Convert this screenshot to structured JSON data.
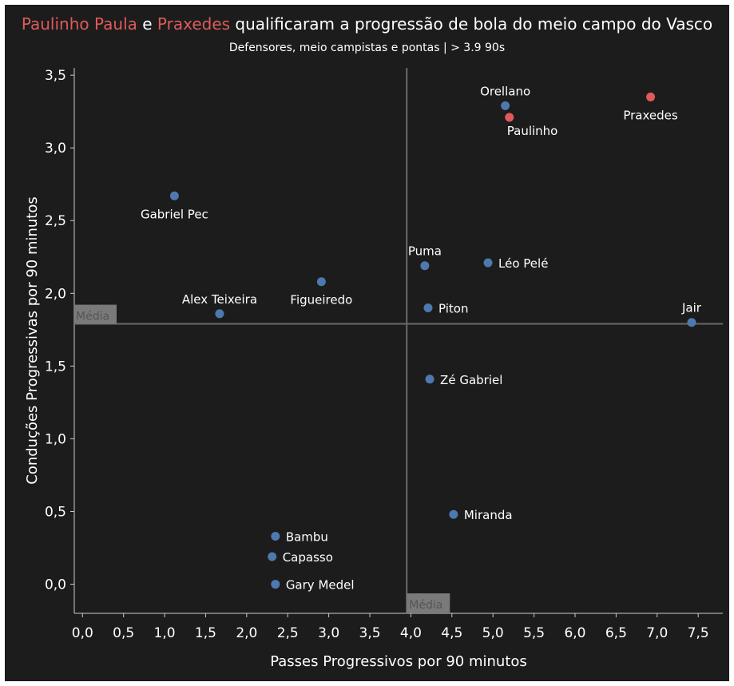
{
  "header": {
    "title_part1": "Paulinho Paula",
    "title_part2": " e ",
    "title_part3": "Praxedes",
    "title_part4": " qualificaram a progressão de bola do meio campo do Vasco",
    "subtitle": "Defensores, meio campistas e pontas | > 3.9 90s"
  },
  "colors": {
    "background": "#1c1c1c",
    "point_default": "#4e79b0",
    "point_highlight": "#e05a5a",
    "text": "#ffffff",
    "axis": "#cccccc",
    "reference_line": "#6a6a6a",
    "reference_label_bg": "#7a7a7a"
  },
  "chart_data": {
    "type": "scatter",
    "xlabel": "Passes Progressivos por 90 minutos",
    "ylabel": "Conduções Progressivas por 90 minutos",
    "xlim": [
      -0.1,
      7.8
    ],
    "ylim": [
      -0.2,
      3.55
    ],
    "x_ticks": [
      {
        "value": 0.0,
        "label": "0,0"
      },
      {
        "value": 0.5,
        "label": "0,5"
      },
      {
        "value": 1.0,
        "label": "1,0"
      },
      {
        "value": 1.5,
        "label": "1,5"
      },
      {
        "value": 2.0,
        "label": "2,0"
      },
      {
        "value": 2.5,
        "label": "2,5"
      },
      {
        "value": 3.0,
        "label": "3,0"
      },
      {
        "value": 3.5,
        "label": "3,5"
      },
      {
        "value": 4.0,
        "label": "4,0"
      },
      {
        "value": 4.5,
        "label": "4,5"
      },
      {
        "value": 5.0,
        "label": "5,0"
      },
      {
        "value": 5.5,
        "label": "5,5"
      },
      {
        "value": 6.0,
        "label": "6,0"
      },
      {
        "value": 6.5,
        "label": "6,5"
      },
      {
        "value": 7.0,
        "label": "7,0"
      },
      {
        "value": 7.5,
        "label": "7,5"
      }
    ],
    "y_ticks": [
      {
        "value": 0.0,
        "label": "0,0"
      },
      {
        "value": 0.5,
        "label": "0,5"
      },
      {
        "value": 1.0,
        "label": "1,0"
      },
      {
        "value": 1.5,
        "label": "1,5"
      },
      {
        "value": 2.0,
        "label": "2,0"
      },
      {
        "value": 2.5,
        "label": "2,5"
      },
      {
        "value": 3.0,
        "label": "3,0"
      },
      {
        "value": 3.5,
        "label": "3,5"
      }
    ],
    "reference_lines": [
      {
        "axis": "x",
        "value": 3.95,
        "label": "Média"
      },
      {
        "axis": "y",
        "value": 1.79,
        "label": "Média"
      }
    ],
    "grid": false,
    "points": [
      {
        "name": "Orellano",
        "x": 5.15,
        "y": 3.29,
        "highlight": false,
        "label_pos": "above"
      },
      {
        "name": "Paulinho",
        "x": 5.2,
        "y": 3.21,
        "highlight": true,
        "label_pos": "below-right"
      },
      {
        "name": "Praxedes",
        "x": 6.92,
        "y": 3.35,
        "highlight": true,
        "label_pos": "below"
      },
      {
        "name": "Gabriel Pec",
        "x": 1.12,
        "y": 2.67,
        "highlight": false,
        "label_pos": "below"
      },
      {
        "name": "Puma",
        "x": 4.17,
        "y": 2.19,
        "highlight": false,
        "label_pos": "above"
      },
      {
        "name": "Léo Pelé",
        "x": 4.94,
        "y": 2.21,
        "highlight": false,
        "label_pos": "right"
      },
      {
        "name": "Figueiredo",
        "x": 2.91,
        "y": 2.08,
        "highlight": false,
        "label_pos": "below"
      },
      {
        "name": "Alex Teixeira",
        "x": 1.67,
        "y": 1.86,
        "highlight": false,
        "label_pos": "above"
      },
      {
        "name": "Piton",
        "x": 4.21,
        "y": 1.9,
        "highlight": false,
        "label_pos": "right"
      },
      {
        "name": "Jair",
        "x": 7.42,
        "y": 1.8,
        "highlight": false,
        "label_pos": "above"
      },
      {
        "name": "Zé Gabriel",
        "x": 4.23,
        "y": 1.41,
        "highlight": false,
        "label_pos": "right"
      },
      {
        "name": "Miranda",
        "x": 4.52,
        "y": 0.48,
        "highlight": false,
        "label_pos": "right"
      },
      {
        "name": "Bambu",
        "x": 2.35,
        "y": 0.33,
        "highlight": false,
        "label_pos": "right"
      },
      {
        "name": "Capasso",
        "x": 2.31,
        "y": 0.19,
        "highlight": false,
        "label_pos": "right"
      },
      {
        "name": "Gary Medel",
        "x": 2.35,
        "y": 0.0,
        "highlight": false,
        "label_pos": "right"
      }
    ]
  }
}
